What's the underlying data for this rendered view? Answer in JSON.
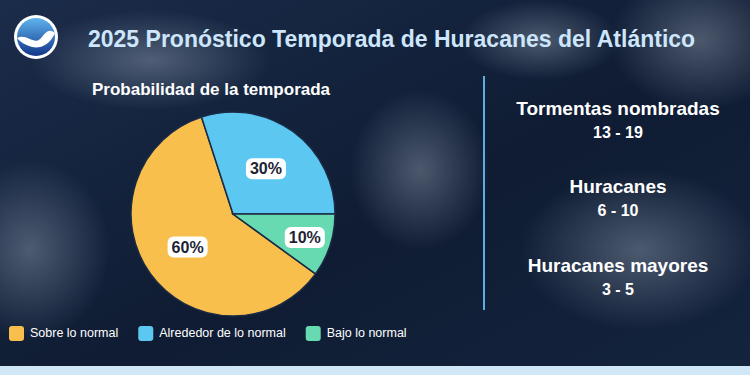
{
  "chart_data": {
    "type": "pie",
    "title": "2025 Pronóstico Temporada de Huracanes del Atlántico",
    "subtitle": "Probabilidad de la temporada",
    "categories": [
      "Sobre lo normal",
      "Alrededor de lo normal",
      "Bajo lo normal"
    ],
    "values": [
      60,
      30,
      10
    ],
    "value_labels": [
      "60%",
      "30%",
      "10%"
    ],
    "colors": [
      "#f9bf4d",
      "#5cc8f1",
      "#68dab2"
    ],
    "data_labels": true,
    "legend": "bottom",
    "annotations": [
      {
        "label": "Tormentas nombradas",
        "text": "13 - 19"
      },
      {
        "label": "Huracanes",
        "text": "6 - 10"
      },
      {
        "label": "Huracanes mayores",
        "text": "3 - 5"
      }
    ]
  }
}
